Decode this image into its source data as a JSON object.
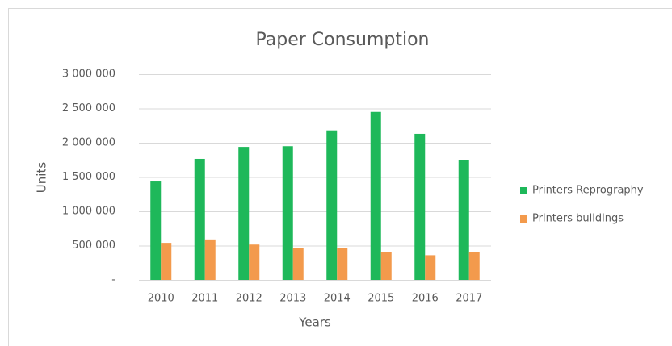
{
  "chart_data": {
    "type": "bar",
    "title": "Paper Consumption",
    "x_label": "Years",
    "y_label": "Units",
    "categories": [
      "2010",
      "2011",
      "2012",
      "2013",
      "2014",
      "2015",
      "2016",
      "2017"
    ],
    "series": [
      {
        "name": "Printers Reprography",
        "color": "#1eb85a",
        "values": [
          1435000,
          1765000,
          1940000,
          1950000,
          2180000,
          2450000,
          2130000,
          1750000
        ]
      },
      {
        "name": "Printers buildings",
        "color": "#f39a4c",
        "values": [
          540000,
          590000,
          515000,
          470000,
          460000,
          410000,
          360000,
          400000
        ]
      }
    ],
    "ylim": [
      0,
      3000000
    ],
    "yticks": [
      {
        "value": 0,
        "label": "-"
      },
      {
        "value": 500000,
        "label": "500 000"
      },
      {
        "value": 1000000,
        "label": "1 000 000"
      },
      {
        "value": 1500000,
        "label": "1 500 000"
      },
      {
        "value": 2000000,
        "label": "2 000 000"
      },
      {
        "value": 2500000,
        "label": "2 500 000"
      },
      {
        "value": 3000000,
        "label": "3 000 000"
      }
    ],
    "grid": true,
    "legend": "right"
  }
}
